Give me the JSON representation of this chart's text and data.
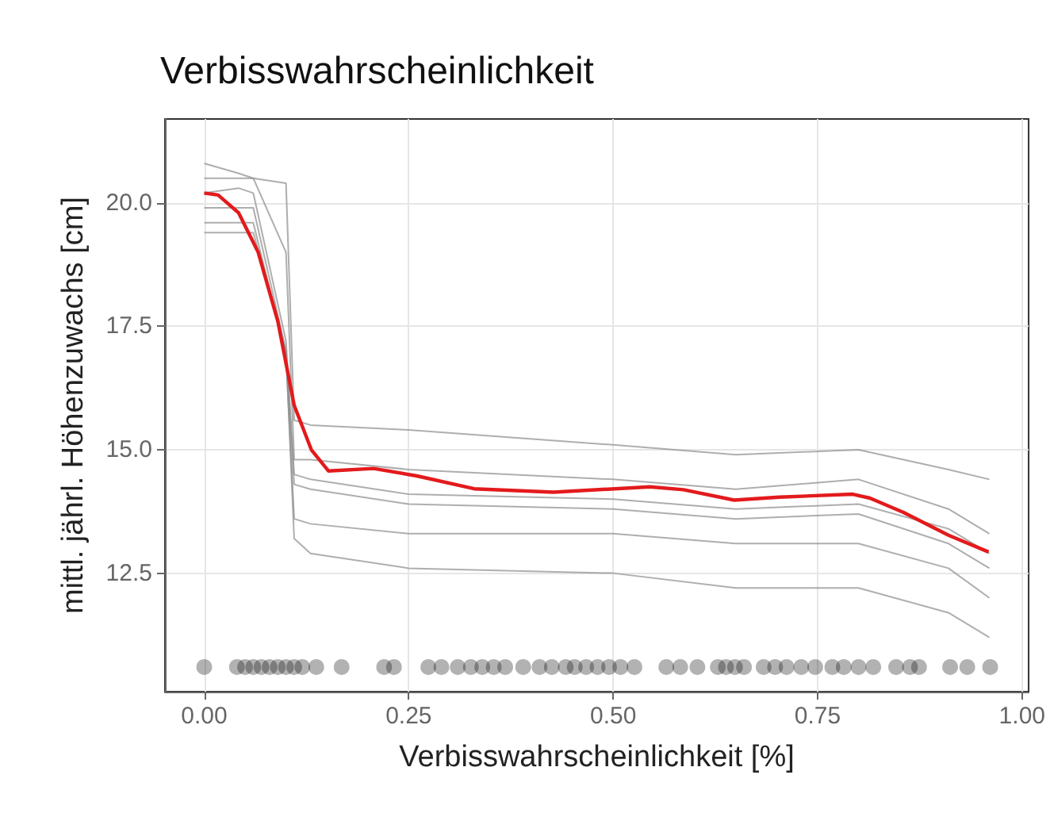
{
  "chart_data": {
    "type": "line",
    "title": "Verbisswahrscheinlichkeit",
    "xlabel": "Verbisswahrscheinlichkeit [%]",
    "ylabel": "mittl. jährl. Höhenzuwachs [cm]",
    "xlim": [
      -0.048,
      1.008
    ],
    "ylim": [
      10.1,
      21.7
    ],
    "xticks": [
      {
        "value": 0,
        "label": "0.00"
      },
      {
        "value": 0.25,
        "label": "0.25"
      },
      {
        "value": 0.5,
        "label": "0.50"
      },
      {
        "value": 0.75,
        "label": "0.75"
      },
      {
        "value": 1,
        "label": "1.00"
      }
    ],
    "yticks": [
      {
        "value": 12.5,
        "label": "12.5"
      },
      {
        "value": 15,
        "label": "15.0"
      },
      {
        "value": 17.5,
        "label": "17.5"
      },
      {
        "value": 20,
        "label": "20.0"
      }
    ],
    "grid": true,
    "series": [
      {
        "color": "#8c8c8c",
        "x": [
          0,
          0.042,
          0.06,
          0.1,
          0.11,
          0.13,
          0.25,
          0.5,
          0.65,
          0.8,
          0.91,
          0.96
        ],
        "values": [
          20.8,
          20.6,
          20.5,
          20.4,
          15.6,
          15.5,
          15.4,
          15.1,
          14.9,
          15.0,
          14.6,
          14.4
        ]
      },
      {
        "color": "#8c8c8c",
        "x": [
          0,
          0.042,
          0.06,
          0.1,
          0.11,
          0.13,
          0.25,
          0.5,
          0.65,
          0.8,
          0.91,
          0.96
        ],
        "values": [
          20.5,
          20.5,
          20.5,
          19.0,
          14.8,
          14.8,
          14.6,
          14.4,
          14.2,
          14.4,
          13.8,
          13.3
        ]
      },
      {
        "color": "#8c8c8c",
        "x": [
          0,
          0.042,
          0.06,
          0.1,
          0.11,
          0.13,
          0.25,
          0.5,
          0.65,
          0.8,
          0.91,
          0.96
        ],
        "values": [
          20.2,
          20.3,
          20.2,
          17.2,
          14.5,
          14.4,
          14.1,
          14.0,
          13.8,
          13.9,
          13.4,
          12.9
        ]
      },
      {
        "color": "#8c8c8c",
        "x": [
          0,
          0.042,
          0.06,
          0.1,
          0.11,
          0.13,
          0.25,
          0.5,
          0.65,
          0.8,
          0.91,
          0.96
        ],
        "values": [
          19.9,
          19.9,
          19.9,
          17.0,
          14.3,
          14.2,
          13.9,
          13.8,
          13.6,
          13.7,
          13.1,
          12.6
        ]
      },
      {
        "color": "#8c8c8c",
        "x": [
          0,
          0.042,
          0.06,
          0.1,
          0.11,
          0.13,
          0.25,
          0.5,
          0.65,
          0.8,
          0.91,
          0.96
        ],
        "values": [
          19.6,
          19.6,
          19.6,
          16.9,
          13.6,
          13.5,
          13.3,
          13.3,
          13.1,
          13.1,
          12.6,
          12.0
        ]
      },
      {
        "color": "#8c8c8c",
        "x": [
          0,
          0.042,
          0.06,
          0.1,
          0.11,
          0.13,
          0.25,
          0.5,
          0.65,
          0.8,
          0.91,
          0.96
        ],
        "values": [
          19.4,
          19.4,
          19.4,
          17.0,
          13.2,
          12.9,
          12.6,
          12.5,
          12.2,
          12.2,
          11.7,
          11.2
        ]
      },
      {
        "color": "#e31a1c",
        "x": [
          0,
          0.017,
          0.042,
          0.066,
          0.09,
          0.11,
          0.131,
          0.152,
          0.207,
          0.26,
          0.33,
          0.427,
          0.545,
          0.586,
          0.648,
          0.703,
          0.793,
          0.814,
          0.855,
          0.91,
          0.959
        ],
        "values": [
          20.2,
          20.16,
          19.8,
          19.0,
          17.6,
          15.9,
          15.0,
          14.57,
          14.62,
          14.47,
          14.21,
          14.14,
          14.25,
          14.19,
          13.98,
          14.04,
          14.1,
          14.02,
          13.73,
          13.27,
          12.93
        ]
      },
      {
        "type": "scatter",
        "marker": "circle",
        "color": "#000000",
        "x": [
          0,
          0.04,
          0.05,
          0.06,
          0.07,
          0.08,
          0.09,
          0.1,
          0.11,
          0.12,
          0.137,
          0.168,
          0.22,
          0.232,
          0.274,
          0.29,
          0.31,
          0.326,
          0.34,
          0.354,
          0.368,
          0.39,
          0.41,
          0.425,
          0.442,
          0.453,
          0.467,
          0.481,
          0.495,
          0.509,
          0.526,
          0.565,
          0.582,
          0.603,
          0.628,
          0.638,
          0.649,
          0.66,
          0.684,
          0.698,
          0.712,
          0.73,
          0.747,
          0.768,
          0.782,
          0.8,
          0.818,
          0.846,
          0.863,
          0.874,
          0.912,
          0.933,
          0.961
        ],
        "values": [
          10.6,
          10.6,
          10.6,
          10.6,
          10.6,
          10.6,
          10.6,
          10.6,
          10.6,
          10.6,
          10.6,
          10.6,
          10.6,
          10.6,
          10.6,
          10.6,
          10.6,
          10.6,
          10.6,
          10.6,
          10.6,
          10.6,
          10.6,
          10.6,
          10.6,
          10.6,
          10.6,
          10.6,
          10.6,
          10.6,
          10.6,
          10.6,
          10.6,
          10.6,
          10.6,
          10.6,
          10.6,
          10.6,
          10.6,
          10.6,
          10.6,
          10.6,
          10.6,
          10.6,
          10.6,
          10.6,
          10.6,
          10.6,
          10.6,
          10.6,
          10.6,
          10.6,
          10.6
        ]
      }
    ]
  }
}
